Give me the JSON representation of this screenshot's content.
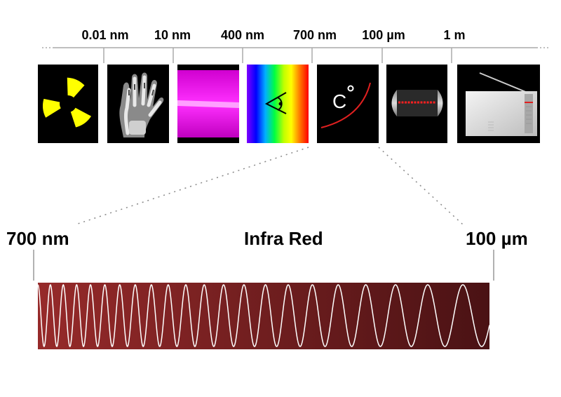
{
  "scale_labels": [
    "0.01 nm",
    "10 nm",
    "400 nm",
    "700 nm",
    "100 µm",
    "1 m"
  ],
  "panels": [
    {
      "name": "radiation-hazard-icon"
    },
    {
      "name": "xray-hand-image"
    },
    {
      "name": "ultraviolet-panel"
    },
    {
      "name": "visible-spectrum-panel"
    },
    {
      "name": "infrared-thermometer-panel"
    },
    {
      "name": "microwave-panel"
    },
    {
      "name": "radio-panel"
    }
  ],
  "thermometer_symbol": "C",
  "zoom": {
    "left_label": "700 nm",
    "center_label": "Infra Red",
    "right_label": "100 µm"
  },
  "colors": {
    "band_left": "#962a2a",
    "band_right": "#4a1214",
    "wave": "#ffffff",
    "hazard_yellow": "#ffff00",
    "ultraviolet": "#ff00ff"
  }
}
